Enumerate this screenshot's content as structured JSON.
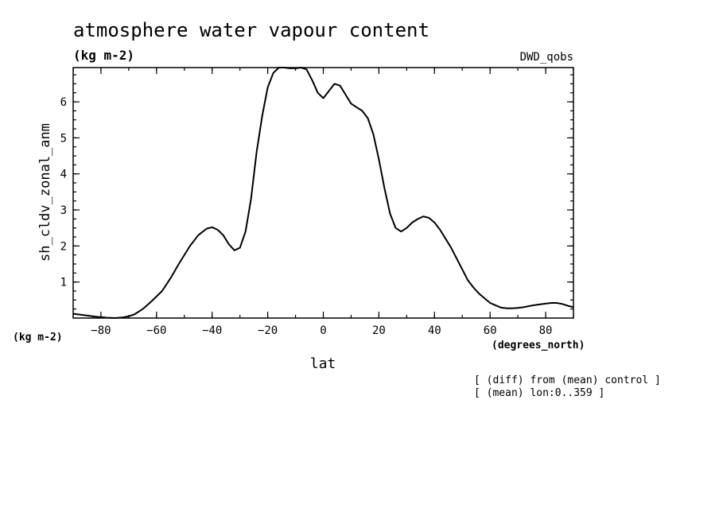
{
  "chart_data": {
    "type": "line",
    "title": "atmosphere water vapour content",
    "units": "(kg m-2)",
    "source_label": "DWD_qobs",
    "ylabel": "sh_cldv_zonal_anm",
    "y_units": "(kg m-2)",
    "xlabel": "lat",
    "x_units": "(degrees_north)",
    "xlim": [
      -90,
      90
    ],
    "ylim": [
      0,
      6.95
    ],
    "x_ticks": [
      -80,
      -60,
      -40,
      -20,
      0,
      20,
      40,
      60,
      80
    ],
    "y_ticks": [
      1,
      2,
      3,
      4,
      5,
      6
    ],
    "notes": [
      "[ (diff) from (mean) control ]",
      "[ (mean) lon:0..359 ]"
    ],
    "grid": false,
    "series": [
      {
        "x": [
          -90,
          -86,
          -82,
          -78,
          -75,
          -72,
          -70,
          -68,
          -65,
          -62,
          -58,
          -55,
          -52,
          -48,
          -45,
          -42,
          -40,
          -38,
          -36,
          -34,
          -32,
          -30,
          -28,
          -26,
          -24,
          -22,
          -20,
          -18,
          -16,
          -14,
          -12,
          -10,
          -8,
          -6,
          -4,
          -2,
          0,
          2,
          4,
          6,
          8,
          10,
          12,
          14,
          16,
          18,
          20,
          22,
          24,
          26,
          28,
          30,
          32,
          34,
          36,
          38,
          40,
          42,
          44,
          46,
          48,
          50,
          52,
          54,
          56,
          58,
          60,
          62,
          64,
          66,
          68,
          70,
          72,
          74,
          76,
          78,
          80,
          82,
          84,
          86,
          88,
          90
        ],
        "y": [
          0.12,
          0.08,
          0.04,
          0.01,
          0.0,
          0.02,
          0.05,
          0.1,
          0.25,
          0.45,
          0.75,
          1.1,
          1.5,
          2.0,
          2.3,
          2.48,
          2.52,
          2.45,
          2.3,
          2.05,
          1.88,
          1.95,
          2.4,
          3.3,
          4.6,
          5.6,
          6.4,
          6.8,
          6.95,
          6.95,
          6.93,
          6.93,
          6.95,
          6.9,
          6.6,
          6.25,
          6.1,
          6.3,
          6.5,
          6.45,
          6.2,
          5.95,
          5.85,
          5.75,
          5.55,
          5.1,
          4.4,
          3.6,
          2.9,
          2.5,
          2.4,
          2.5,
          2.65,
          2.75,
          2.82,
          2.78,
          2.65,
          2.45,
          2.2,
          1.95,
          1.65,
          1.35,
          1.05,
          0.85,
          0.68,
          0.55,
          0.42,
          0.35,
          0.29,
          0.27,
          0.27,
          0.28,
          0.3,
          0.33,
          0.36,
          0.38,
          0.4,
          0.42,
          0.42,
          0.39,
          0.34,
          0.3
        ]
      }
    ]
  }
}
